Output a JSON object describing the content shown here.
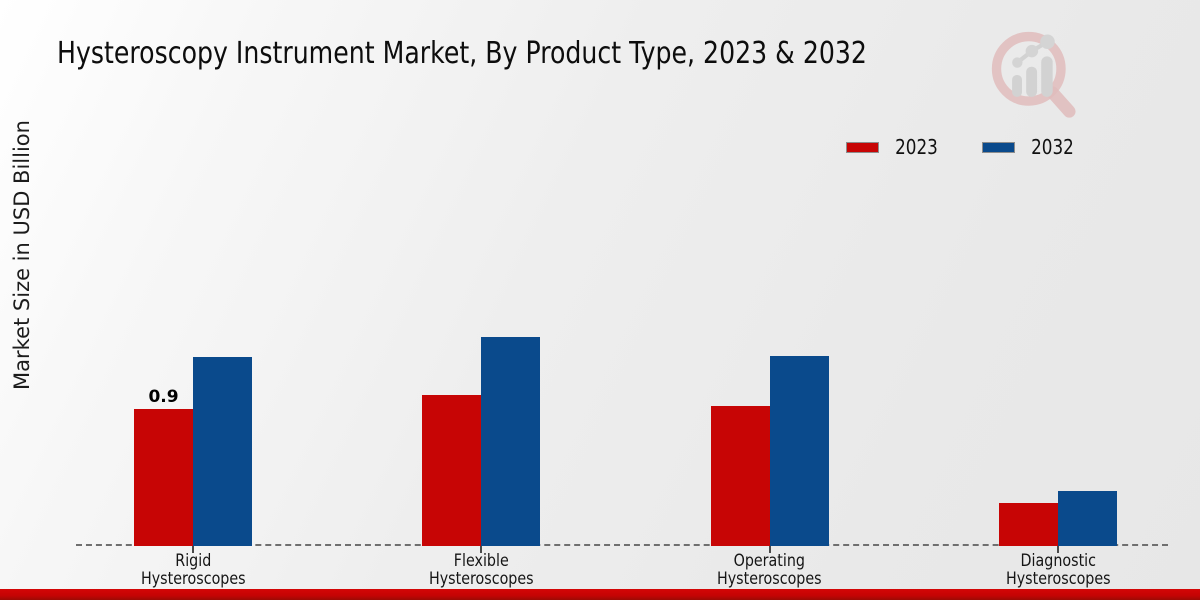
{
  "title": "Hysteroscopy Instrument Market, By Product Type, 2023 & 2032",
  "y_axis_label": "Market Size in USD Billion",
  "legend": {
    "items": [
      {
        "label": "2023",
        "color": "#c70505"
      },
      {
        "label": "2032",
        "color": "#0a4a8c"
      }
    ]
  },
  "branding": {
    "logo_icon": "magnifier-bar-chart-logo",
    "footer_bar_color": "#c40404"
  },
  "chart_data": {
    "type": "bar",
    "title": "Hysteroscopy Instrument Market, By Product Type, 2023 & 2032",
    "xlabel": "",
    "ylabel": "Market Size in USD Billion",
    "categories": [
      "Rigid\nHysteroscopes",
      "Flexible\nHysteroscopes",
      "Operating\nHysteroscopes",
      "Diagnostic\nHysteroscopes"
    ],
    "series": [
      {
        "name": "2023",
        "color": "#c70505",
        "values": [
          0.9,
          0.99,
          0.92,
          0.28
        ]
      },
      {
        "name": "2032",
        "color": "#0a4a8c",
        "values": [
          1.24,
          1.37,
          1.25,
          0.36
        ]
      }
    ],
    "annotations": [
      {
        "series_index": 0,
        "category_index": 0,
        "text": "0.9"
      }
    ],
    "ylim": [
      0,
      1.45
    ],
    "grid": false,
    "y_tick_labels_visible": false,
    "axis_style": "dashed-baseline-only",
    "legend_position": "upper-right"
  }
}
